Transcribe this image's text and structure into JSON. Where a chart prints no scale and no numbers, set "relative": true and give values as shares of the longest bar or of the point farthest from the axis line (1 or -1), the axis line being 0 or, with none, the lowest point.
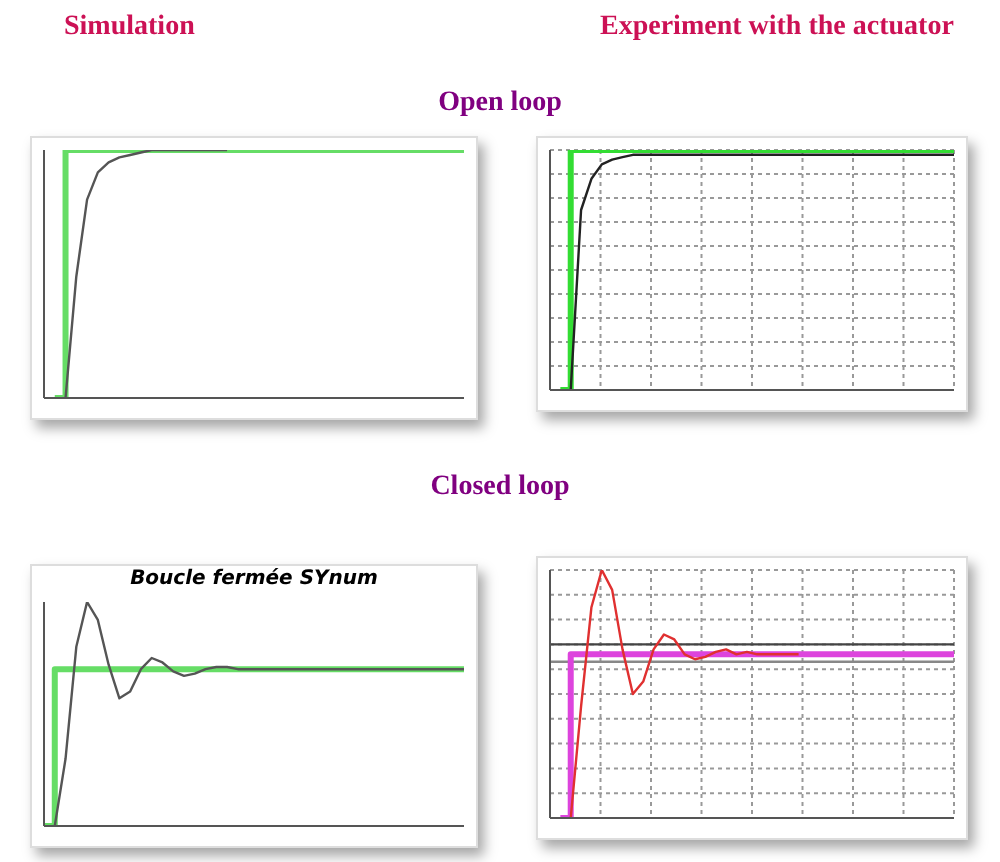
{
  "chart_data": [
    {
      "type": "line",
      "title": "Simulation",
      "subtitle": "Open loop",
      "relative": true,
      "grid": false,
      "marker": "none",
      "line_style": "solid",
      "categories": [
        null,
        null,
        null,
        null,
        null,
        null,
        null,
        null,
        null,
        null,
        null,
        null,
        null,
        null,
        null,
        null,
        null,
        null,
        null,
        null,
        null,
        null,
        null,
        null,
        null,
        null,
        null,
        null,
        null,
        null,
        null,
        null,
        null,
        null,
        null,
        null,
        null,
        null,
        null,
        null
      ],
      "series": [
        {
          "type": "step",
          "color": "#66dd66",
          "values": [
            null,
            0,
            1,
            1,
            1,
            1,
            1,
            1,
            1,
            1,
            1,
            1,
            1,
            1,
            1,
            1,
            1,
            1,
            1,
            1,
            1,
            1,
            1,
            1,
            1,
            1,
            1,
            1,
            1,
            1,
            1,
            1,
            1,
            1,
            1,
            1,
            1,
            1,
            1,
            1
          ]
        },
        {
          "color": "#555555",
          "values": [
            null,
            null,
            0,
            0.49,
            0.8,
            0.91,
            0.95,
            0.97,
            0.98,
            0.99,
            1,
            1,
            1,
            1,
            1,
            1,
            1,
            1,
            null,
            null,
            null,
            null,
            null,
            null,
            null,
            null,
            null,
            null,
            null,
            null,
            null,
            null,
            null,
            null,
            null,
            null,
            null,
            null,
            null,
            null
          ]
        }
      ]
    },
    {
      "type": "line",
      "title": "Experiment with the actuator",
      "relative": true,
      "grid": true,
      "marker": "none",
      "line_style": "solid",
      "categories": [
        null,
        null,
        null,
        null,
        null,
        null,
        null,
        null,
        null,
        null,
        null,
        null,
        null,
        null,
        null,
        null,
        null,
        null,
        null,
        null,
        null,
        null,
        null,
        null,
        null,
        null,
        null,
        null,
        null,
        null,
        null,
        null,
        null,
        null,
        null,
        null,
        null,
        null,
        null,
        null
      ],
      "series": [
        {
          "type": "step",
          "color": "#33dd33",
          "values": [
            null,
            0,
            1,
            1,
            1,
            1,
            1,
            1,
            1,
            1,
            1,
            1,
            1,
            1,
            1,
            1,
            1,
            1,
            1,
            1,
            1,
            1,
            1,
            1,
            1,
            1,
            1,
            1,
            1,
            1,
            1,
            1,
            1,
            1,
            1,
            1,
            1,
            1,
            1,
            1
          ]
        },
        {
          "color": "#222222",
          "values": [
            null,
            null,
            0,
            0.75,
            0.88,
            0.94,
            0.96,
            0.97,
            0.98,
            0.98,
            0.98,
            0.98,
            0.98,
            0.98,
            0.98,
            0.98,
            0.98,
            0.98,
            0.98,
            0.98,
            0.98,
            0.98,
            0.98,
            0.98,
            0.98,
            0.98,
            0.98,
            0.98,
            0.98,
            0.98,
            0.98,
            0.98,
            0.98,
            0.98,
            0.98,
            0.98,
            0.98,
            0.98,
            0.98,
            0.98
          ]
        }
      ]
    },
    {
      "type": "line",
      "title": "Boucle fermée SYnum",
      "subtitle": "Closed loop",
      "relative": true,
      "grid": false,
      "marker": "none",
      "line_style": "solid",
      "categories": [
        null,
        null,
        null,
        null,
        null,
        null,
        null,
        null,
        null,
        null,
        null,
        null,
        null,
        null,
        null,
        null,
        null,
        null,
        null,
        null,
        null,
        null,
        null,
        null,
        null,
        null,
        null,
        null,
        null,
        null,
        null,
        null,
        null,
        null,
        null,
        null,
        null,
        null,
        null,
        null
      ],
      "series": [
        {
          "type": "step",
          "color": "#66dd66",
          "values": [
            0,
            0.7,
            0.7,
            0.7,
            0.7,
            0.7,
            0.7,
            0.7,
            0.7,
            0.7,
            0.7,
            0.7,
            0.7,
            0.7,
            0.7,
            0.7,
            0.7,
            0.7,
            0.7,
            0.7,
            0.7,
            0.7,
            0.7,
            0.7,
            0.7,
            0.7,
            0.7,
            0.7,
            0.7,
            0.7,
            0.7,
            0.7,
            0.7,
            0.7,
            0.7,
            0.7,
            0.7,
            0.7,
            0.7,
            0.7
          ]
        },
        {
          "color": "#555555",
          "values": [
            null,
            0,
            0.3,
            0.8,
            1,
            0.92,
            0.72,
            0.57,
            0.6,
            0.7,
            0.75,
            0.73,
            0.69,
            0.67,
            0.68,
            0.7,
            0.71,
            0.71,
            0.7,
            0.7,
            0.7,
            0.7,
            0.7,
            0.7,
            0.7,
            0.7,
            0.7,
            0.7,
            0.7,
            0.7,
            0.7,
            0.7,
            0.7,
            0.7,
            0.7,
            0.7,
            0.7,
            0.7,
            0.7,
            0.7
          ]
        }
      ]
    },
    {
      "type": "line",
      "relative": true,
      "grid": true,
      "marker": "none",
      "line_style": "solid",
      "categories": [
        null,
        null,
        null,
        null,
        null,
        null,
        null,
        null,
        null,
        null,
        null,
        null,
        null,
        null,
        null,
        null,
        null,
        null,
        null,
        null,
        null,
        null,
        null,
        null,
        null,
        null,
        null,
        null,
        null,
        null,
        null,
        null,
        null,
        null,
        null,
        null,
        null,
        null,
        null,
        null
      ],
      "ref_lines": [
        {
          "axis": "y",
          "value": 0.7,
          "color": "#444444"
        },
        {
          "axis": "y",
          "value": 0.63,
          "color": "#888888"
        }
      ],
      "series": [
        {
          "type": "step",
          "color": "#dd44dd",
          "values": [
            null,
            0,
            0.66,
            0.66,
            0.66,
            0.66,
            0.66,
            0.66,
            0.66,
            0.66,
            0.66,
            0.66,
            0.66,
            0.66,
            0.66,
            0.66,
            0.66,
            0.66,
            0.66,
            0.66,
            0.66,
            0.66,
            0.66,
            0.66,
            0.66,
            0.66,
            0.66,
            0.66,
            0.66,
            0.66,
            0.66,
            0.66,
            0.66,
            0.66,
            0.66,
            0.66,
            0.66,
            0.66,
            0.66,
            0.66
          ]
        },
        {
          "color": "#e03030",
          "values": [
            null,
            null,
            0,
            0.45,
            0.85,
            1,
            0.92,
            0.68,
            0.5,
            0.55,
            0.68,
            0.74,
            0.72,
            0.66,
            0.64,
            0.65,
            0.67,
            0.68,
            0.66,
            0.67,
            0.66,
            0.66,
            0.66,
            0.66,
            0.66,
            null,
            null,
            null,
            null,
            null,
            null,
            null,
            null,
            null,
            null,
            null,
            null,
            null,
            null,
            null
          ]
        }
      ]
    }
  ]
}
